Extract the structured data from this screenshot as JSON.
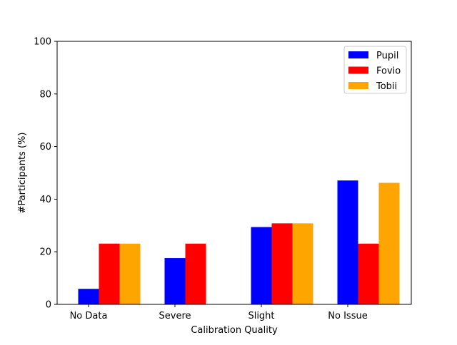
{
  "chart_data": {
    "type": "bar",
    "title": "",
    "xlabel": "Calibration Quality",
    "ylabel": "#Participants (%)",
    "ylim": [
      0,
      100
    ],
    "yticks": [
      0,
      20,
      40,
      60,
      80,
      100
    ],
    "categories": [
      "No Data",
      "Severe",
      "Slight",
      "No Issue"
    ],
    "series": [
      {
        "name": "Pupil",
        "color": "#0000ff",
        "values": [
          5.9,
          17.6,
          29.4,
          47.1
        ]
      },
      {
        "name": "Fovio",
        "color": "#ff0000",
        "values": [
          23.1,
          23.1,
          30.8,
          23.1
        ]
      },
      {
        "name": "Tobii",
        "color": "#ffa500",
        "values": [
          23.1,
          0,
          30.8,
          46.2
        ]
      }
    ],
    "legend": {
      "position": "top-right"
    },
    "grid": false
  }
}
